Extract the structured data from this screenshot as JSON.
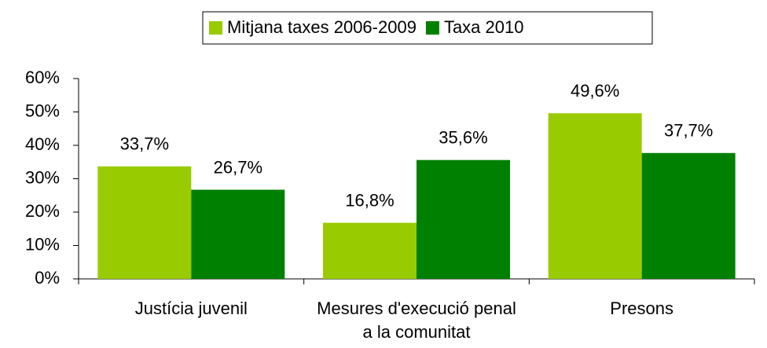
{
  "chart_data": {
    "type": "bar",
    "categories": [
      "Justícia juvenil",
      "Mesures d'execució penal a la comunitat",
      "Presons"
    ],
    "series": [
      {
        "name": "Mitjana taxes 2006-2009",
        "color": "#99cc00",
        "values": [
          33.7,
          16.8,
          49.6
        ],
        "value_labels": [
          "33,7%",
          "16,8%",
          "49,6%"
        ]
      },
      {
        "name": "Taxa 2010",
        "color": "#008000",
        "values": [
          26.7,
          35.6,
          37.7
        ],
        "value_labels": [
          "26,7%",
          "35,6%",
          "37,7%"
        ]
      }
    ],
    "ylim": [
      0,
      60
    ],
    "yticks": [
      {
        "value": 0,
        "label": "0%"
      },
      {
        "value": 10,
        "label": "10%"
      },
      {
        "value": 20,
        "label": "20%"
      },
      {
        "value": 30,
        "label": "30%"
      },
      {
        "value": 40,
        "label": "40%"
      },
      {
        "value": 50,
        "label": "50%"
      },
      {
        "value": 60,
        "label": "60%"
      }
    ],
    "legend": "top"
  }
}
